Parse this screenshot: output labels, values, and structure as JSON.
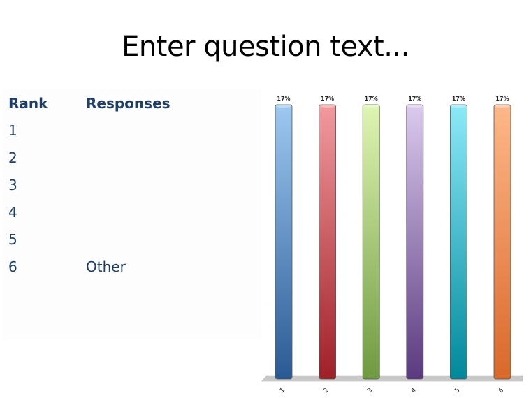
{
  "slide": {
    "title": "Enter question text..."
  },
  "ranking_table": {
    "headers": {
      "rank": "Rank",
      "responses": "Responses"
    },
    "rows": [
      {
        "rank": "1",
        "response": ""
      },
      {
        "rank": "2",
        "response": ""
      },
      {
        "rank": "3",
        "response": ""
      },
      {
        "rank": "4",
        "response": ""
      },
      {
        "rank": "5",
        "response": ""
      },
      {
        "rank": "6",
        "response": "Other"
      }
    ]
  },
  "chart_data": {
    "type": "bar",
    "categories": [
      "1",
      "2",
      "3",
      "4",
      "5",
      "6"
    ],
    "values": [
      17,
      17,
      17,
      17,
      17,
      17
    ],
    "value_labels": [
      "17%",
      "17%",
      "17%",
      "17%",
      "17%",
      "17%"
    ],
    "ylim": [
      0,
      17
    ],
    "grid": false,
    "title": "",
    "xlabel": "",
    "ylabel": "",
    "colors": [
      {
        "top": "#9ec8f2",
        "bottom": "#2a5a94"
      },
      {
        "top": "#f29a9e",
        "bottom": "#a01f28"
      },
      {
        "top": "#dff5b2",
        "bottom": "#6e9a40"
      },
      {
        "top": "#dccaee",
        "bottom": "#5a3a7e"
      },
      {
        "top": "#8ceaf8",
        "bottom": "#00889a"
      },
      {
        "top": "#ffb888",
        "bottom": "#d8682a"
      }
    ],
    "floor_color": "#c8c8c8"
  }
}
